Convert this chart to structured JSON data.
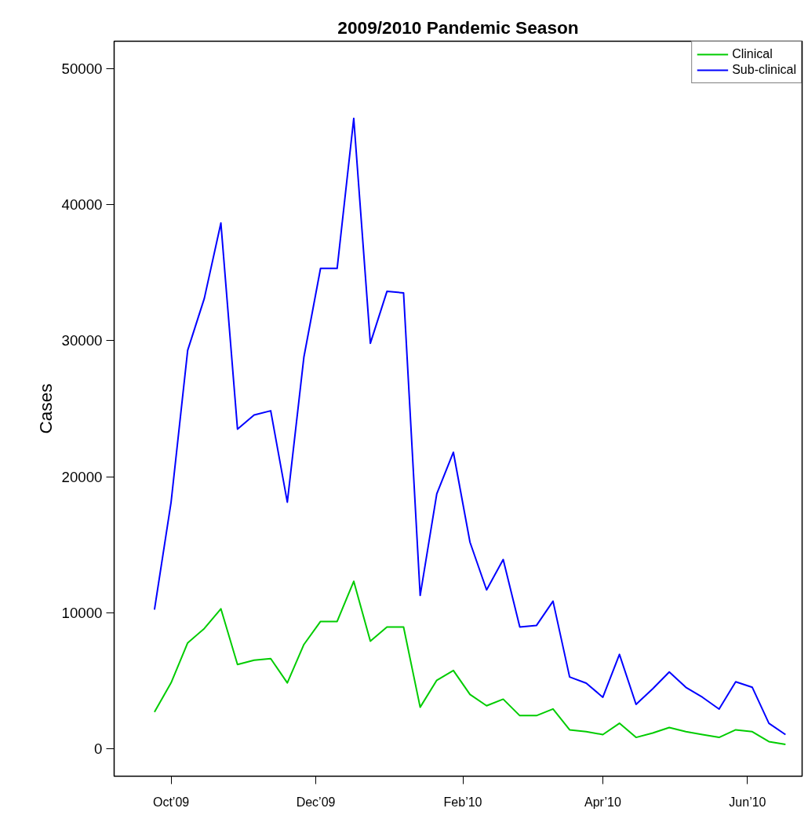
{
  "chart_data": {
    "type": "line",
    "title": "2009/2010 Pandemic Season",
    "ylabel": "Cases",
    "x": [
      "2009-09-24",
      "2009-10-01",
      "2009-10-08",
      "2009-10-15",
      "2009-10-22",
      "2009-10-29",
      "2009-11-05",
      "2009-11-12",
      "2009-11-19",
      "2009-11-26",
      "2009-12-03",
      "2009-12-10",
      "2009-12-17",
      "2009-12-24",
      "2009-12-31",
      "2010-01-07",
      "2010-01-14",
      "2010-01-21",
      "2010-01-28",
      "2010-02-04",
      "2010-02-11",
      "2010-02-18",
      "2010-02-25",
      "2010-03-04",
      "2010-03-11",
      "2010-03-18",
      "2010-03-25",
      "2010-04-01",
      "2010-04-08",
      "2010-04-15",
      "2010-04-22",
      "2010-04-29",
      "2010-05-06",
      "2010-05-13",
      "2010-05-20",
      "2010-05-27",
      "2010-06-03",
      "2010-06-10",
      "2010-06-17"
    ],
    "series": [
      {
        "name": "Clinical",
        "color": "#00cc00",
        "values": [
          2710,
          4860,
          7800,
          8850,
          10300,
          6210,
          6520,
          6640,
          4860,
          7680,
          9370,
          9370,
          12320,
          7920,
          8960,
          8960,
          3070,
          5050,
          5770,
          4010,
          3180,
          3660,
          2450,
          2450,
          2940,
          1410,
          1270,
          1060,
          1890,
          850,
          1170,
          1580,
          1270,
          1060,
          850,
          1410,
          1270,
          540,
          340
        ]
      },
      {
        "name": "Sub-clinical",
        "color": "#0000ff",
        "values": [
          10240,
          18130,
          29290,
          33100,
          38640,
          23500,
          24540,
          24850,
          18130,
          28810,
          35310,
          35310,
          46330,
          29810,
          33620,
          33510,
          11280,
          18750,
          21800,
          15190,
          11690,
          13920,
          8960,
          9070,
          10860,
          5290,
          4840,
          3800,
          6950,
          3280,
          4420,
          5660,
          4530,
          3800,
          2930,
          4940,
          4530,
          1890,
          1060
        ]
      }
    ],
    "xlim": [
      "2009-09-07",
      "2010-06-24"
    ],
    "ylim": [
      -2000,
      52000
    ],
    "xticks": [
      {
        "value": "2009-10-01",
        "label": "Oct’09"
      },
      {
        "value": "2009-12-01",
        "label": "Dec’09"
      },
      {
        "value": "2010-02-01",
        "label": "Feb’10"
      },
      {
        "value": "2010-04-01",
        "label": "Apr’10"
      },
      {
        "value": "2010-06-01",
        "label": "Jun’10"
      }
    ],
    "yticks": [
      0,
      10000,
      20000,
      30000,
      40000,
      50000
    ],
    "grid": false,
    "legend": "top right",
    "marker": "none",
    "line_style": "solid"
  }
}
